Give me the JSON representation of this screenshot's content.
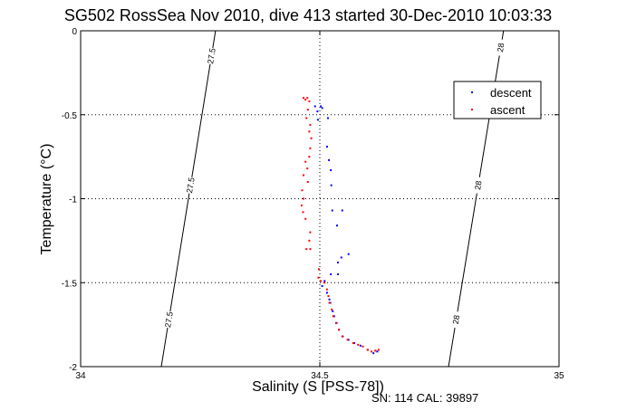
{
  "chart_data": {
    "type": "scatter",
    "title": "SG502 RossSea Nov 2010, dive 413 started 30-Dec-2010 10:03:33",
    "xlabel": "Salinity (S [PSS-78])",
    "ylabel": "Temperature (°C)",
    "xlim": [
      34,
      35
    ],
    "ylim": [
      -2,
      0
    ],
    "xticks": [
      "34",
      "34.5",
      "35"
    ],
    "yticks": [
      "0",
      "-0.5",
      "-1",
      "-1.5",
      "-2"
    ],
    "xtick_values": [
      34,
      34.5,
      35
    ],
    "ytick_values": [
      0,
      -0.5,
      -1,
      -1.5,
      -2
    ],
    "grid": "dotted",
    "legend_position": "top-right",
    "series": [
      {
        "name": "descent",
        "color": "#0000ff",
        "points": [
          [
            34.49,
            -0.45
          ],
          [
            34.502,
            -0.45
          ],
          [
            34.496,
            -0.53
          ],
          [
            34.495,
            -0.48
          ],
          [
            34.505,
            -0.46
          ],
          [
            34.517,
            -0.52
          ],
          [
            34.515,
            -0.69
          ],
          [
            34.519,
            -0.77
          ],
          [
            34.523,
            -0.83
          ],
          [
            34.524,
            -0.92
          ],
          [
            34.526,
            -1.07
          ],
          [
            34.547,
            -1.07
          ],
          [
            34.536,
            -1.16
          ],
          [
            34.56,
            -1.33
          ],
          [
            34.545,
            -1.35
          ],
          [
            34.538,
            -1.38
          ],
          [
            34.523,
            -1.45
          ],
          [
            34.538,
            -1.45
          ],
          [
            34.51,
            -1.49
          ],
          [
            34.505,
            -1.52
          ],
          [
            34.515,
            -1.56
          ],
          [
            34.52,
            -1.6
          ],
          [
            34.522,
            -1.62
          ],
          [
            34.527,
            -1.67
          ],
          [
            34.53,
            -1.7
          ],
          [
            34.535,
            -1.74
          ],
          [
            34.54,
            -1.78
          ],
          [
            34.548,
            -1.82
          ],
          [
            34.56,
            -1.84
          ],
          [
            34.572,
            -1.86
          ],
          [
            34.585,
            -1.875
          ],
          [
            34.6,
            -1.9
          ],
          [
            34.612,
            -1.92
          ],
          [
            34.62,
            -1.91
          ]
        ]
      },
      {
        "name": "ascent",
        "color": "#ff0000",
        "points": [
          [
            34.466,
            -0.4
          ],
          [
            34.474,
            -0.4
          ],
          [
            34.47,
            -0.41
          ],
          [
            34.478,
            -0.42
          ],
          [
            34.475,
            -0.47
          ],
          [
            34.472,
            -0.52
          ],
          [
            34.48,
            -0.56
          ],
          [
            34.478,
            -0.6
          ],
          [
            34.482,
            -0.64
          ],
          [
            34.48,
            -0.7
          ],
          [
            34.478,
            -0.75
          ],
          [
            34.47,
            -0.78
          ],
          [
            34.474,
            -0.82
          ],
          [
            34.466,
            -0.86
          ],
          [
            34.475,
            -0.9
          ],
          [
            34.463,
            -0.95
          ],
          [
            34.466,
            -1.0
          ],
          [
            34.462,
            -1.04
          ],
          [
            34.465,
            -1.08
          ],
          [
            34.47,
            -1.12
          ],
          [
            34.48,
            -1.2
          ],
          [
            34.478,
            -1.25
          ],
          [
            34.472,
            -1.3
          ],
          [
            34.48,
            -1.3
          ],
          [
            34.498,
            -1.42
          ],
          [
            34.497,
            -1.47
          ],
          [
            34.502,
            -1.49
          ],
          [
            34.51,
            -1.5
          ],
          [
            34.515,
            -1.54
          ],
          [
            34.518,
            -1.58
          ],
          [
            34.52,
            -1.62
          ],
          [
            34.525,
            -1.66
          ],
          [
            34.528,
            -1.7
          ],
          [
            34.534,
            -1.74
          ],
          [
            34.54,
            -1.78
          ],
          [
            34.547,
            -1.82
          ],
          [
            34.558,
            -1.84
          ],
          [
            34.57,
            -1.86
          ],
          [
            34.58,
            -1.87
          ],
          [
            34.59,
            -1.88
          ],
          [
            34.6,
            -1.9
          ],
          [
            34.608,
            -1.91
          ],
          [
            34.616,
            -1.905
          ],
          [
            34.623,
            -1.9
          ]
        ]
      }
    ],
    "contours": [
      {
        "label": "27.5",
        "line": [
          [
            34.1686,
            -2
          ],
          [
            34.282,
            0
          ]
        ],
        "label_positions": [
          -0.15,
          -0.92,
          -1.72
        ]
      },
      {
        "label": "28",
        "line": [
          [
            34.769,
            -2
          ],
          [
            34.884,
            0
          ]
        ],
        "label_positions": [
          -0.1,
          -0.92,
          -1.72
        ]
      }
    ]
  },
  "footer_note": "SN: 114  CAL: 39897"
}
